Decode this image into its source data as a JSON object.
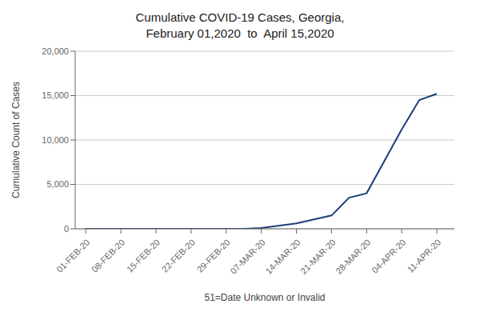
{
  "chart_data": {
    "type": "line",
    "title": "Cumulative COVID-19 Cases, Georgia,\nFebruary 01,2020  to  April 15,2020",
    "xlabel": "51=Date Unknown or Invalid",
    "ylabel": "Cumulative Count of Cases",
    "x": [
      0,
      1,
      2,
      3,
      4,
      4.5,
      5,
      6,
      7,
      7.5,
      8,
      9,
      9.5,
      10
    ],
    "values": [
      0,
      0,
      0,
      0,
      2,
      10,
      100,
      600,
      1500,
      3500,
      4000,
      11200,
      14500,
      15200
    ],
    "color": "#1f3d7a",
    "xlim": [
      -0.3,
      10.5
    ],
    "xticks": [
      {
        "value": 0,
        "label": "01-FEB-20"
      },
      {
        "value": 1,
        "label": "08-FEB-20"
      },
      {
        "value": 2,
        "label": "15-FEB-20"
      },
      {
        "value": 3,
        "label": "22-FEB-20"
      },
      {
        "value": 4,
        "label": "29-FEB-20"
      },
      {
        "value": 5,
        "label": "07-MAR-20"
      },
      {
        "value": 6,
        "label": "14-MAR-20"
      },
      {
        "value": 7,
        "label": "21-MAR-20"
      },
      {
        "value": 8,
        "label": "28-MAR-20"
      },
      {
        "value": 9,
        "label": "04-APR-20"
      },
      {
        "value": 10,
        "label": "11-APR-20"
      }
    ],
    "ylim": [
      0,
      20000
    ],
    "yticks": [
      0,
      {
        "value": 5000,
        "label": "5,000"
      },
      {
        "value": 10000,
        "label": "10,000"
      },
      {
        "value": 15000,
        "label": "15,000"
      },
      {
        "value": 20000,
        "label": "20,000"
      }
    ],
    "grid": "y"
  }
}
